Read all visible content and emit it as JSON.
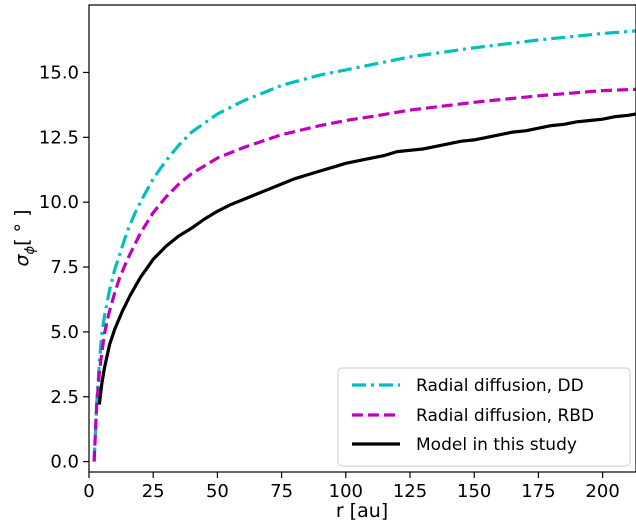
{
  "chart_data": {
    "type": "line",
    "xlabel": "r [au]",
    "ylabel": "σ",
    "ylabel_sub": "ϕ",
    "ylabel_unit": "[ ° ]",
    "xlim": [
      0,
      213
    ],
    "ylim": [
      -0.4,
      17.6
    ],
    "xticks": [
      0,
      25,
      50,
      75,
      100,
      125,
      150,
      175,
      200
    ],
    "xtick_labels": [
      "0",
      "25",
      "50",
      "75",
      "100",
      "125",
      "150",
      "175",
      "200"
    ],
    "yticks": [
      0.0,
      2.5,
      5.0,
      7.5,
      10.0,
      12.5,
      15.0
    ],
    "ytick_labels": [
      "0.0",
      "2.5",
      "5.0",
      "7.5",
      "10.0",
      "12.5",
      "15.0"
    ],
    "grid": false,
    "legend_position": "lower-right",
    "series": [
      {
        "name": "Radial diffusion, DD",
        "color": "#00bfbf",
        "style": "dashdot",
        "x": [
          2,
          3,
          4,
          5,
          6,
          7,
          8,
          10,
          12,
          15,
          18,
          20,
          25,
          30,
          35,
          40,
          50,
          60,
          75,
          90,
          100,
          110,
          125,
          150,
          175,
          200,
          213
        ],
        "y": [
          0.0,
          2.2,
          3.8,
          4.9,
          5.6,
          6.1,
          6.6,
          7.4,
          8.0,
          8.9,
          9.6,
          10.0,
          10.9,
          11.6,
          12.2,
          12.7,
          13.4,
          13.9,
          14.5,
          14.9,
          15.1,
          15.3,
          15.6,
          15.95,
          16.25,
          16.5,
          16.6
        ]
      },
      {
        "name": "Radial diffusion, RBD",
        "color": "#bf00bf",
        "style": "dashed",
        "x": [
          2,
          3,
          4,
          5,
          6,
          7,
          8,
          10,
          12,
          15,
          18,
          20,
          25,
          30,
          35,
          40,
          50,
          60,
          75,
          90,
          100,
          110,
          125,
          150,
          175,
          200,
          213
        ],
        "y": [
          0.0,
          2.2,
          3.4,
          4.2,
          4.9,
          5.4,
          5.8,
          6.5,
          7.1,
          7.8,
          8.4,
          8.8,
          9.6,
          10.2,
          10.7,
          11.1,
          11.7,
          12.1,
          12.6,
          12.95,
          13.15,
          13.3,
          13.55,
          13.85,
          14.1,
          14.3,
          14.35
        ]
      },
      {
        "name": "Model in this study",
        "color": "#000000",
        "style": "solid",
        "x": [
          4,
          5,
          6,
          8,
          10,
          13,
          16,
          20,
          25,
          30,
          35,
          40,
          45,
          50,
          55,
          60,
          65,
          70,
          75,
          80,
          85,
          90,
          95,
          100,
          105,
          110,
          115,
          120,
          125,
          130,
          135,
          140,
          145,
          150,
          155,
          160,
          165,
          170,
          175,
          180,
          185,
          190,
          195,
          200,
          205,
          210,
          213
        ],
        "y": [
          2.2,
          3.0,
          3.6,
          4.5,
          5.1,
          5.8,
          6.4,
          7.1,
          7.8,
          8.3,
          8.7,
          9.0,
          9.35,
          9.65,
          9.9,
          10.1,
          10.3,
          10.5,
          10.7,
          10.9,
          11.05,
          11.2,
          11.35,
          11.5,
          11.6,
          11.7,
          11.8,
          11.95,
          12.0,
          12.05,
          12.15,
          12.25,
          12.35,
          12.4,
          12.5,
          12.6,
          12.7,
          12.75,
          12.85,
          12.95,
          13.0,
          13.1,
          13.15,
          13.2,
          13.3,
          13.35,
          13.4
        ]
      }
    ]
  }
}
